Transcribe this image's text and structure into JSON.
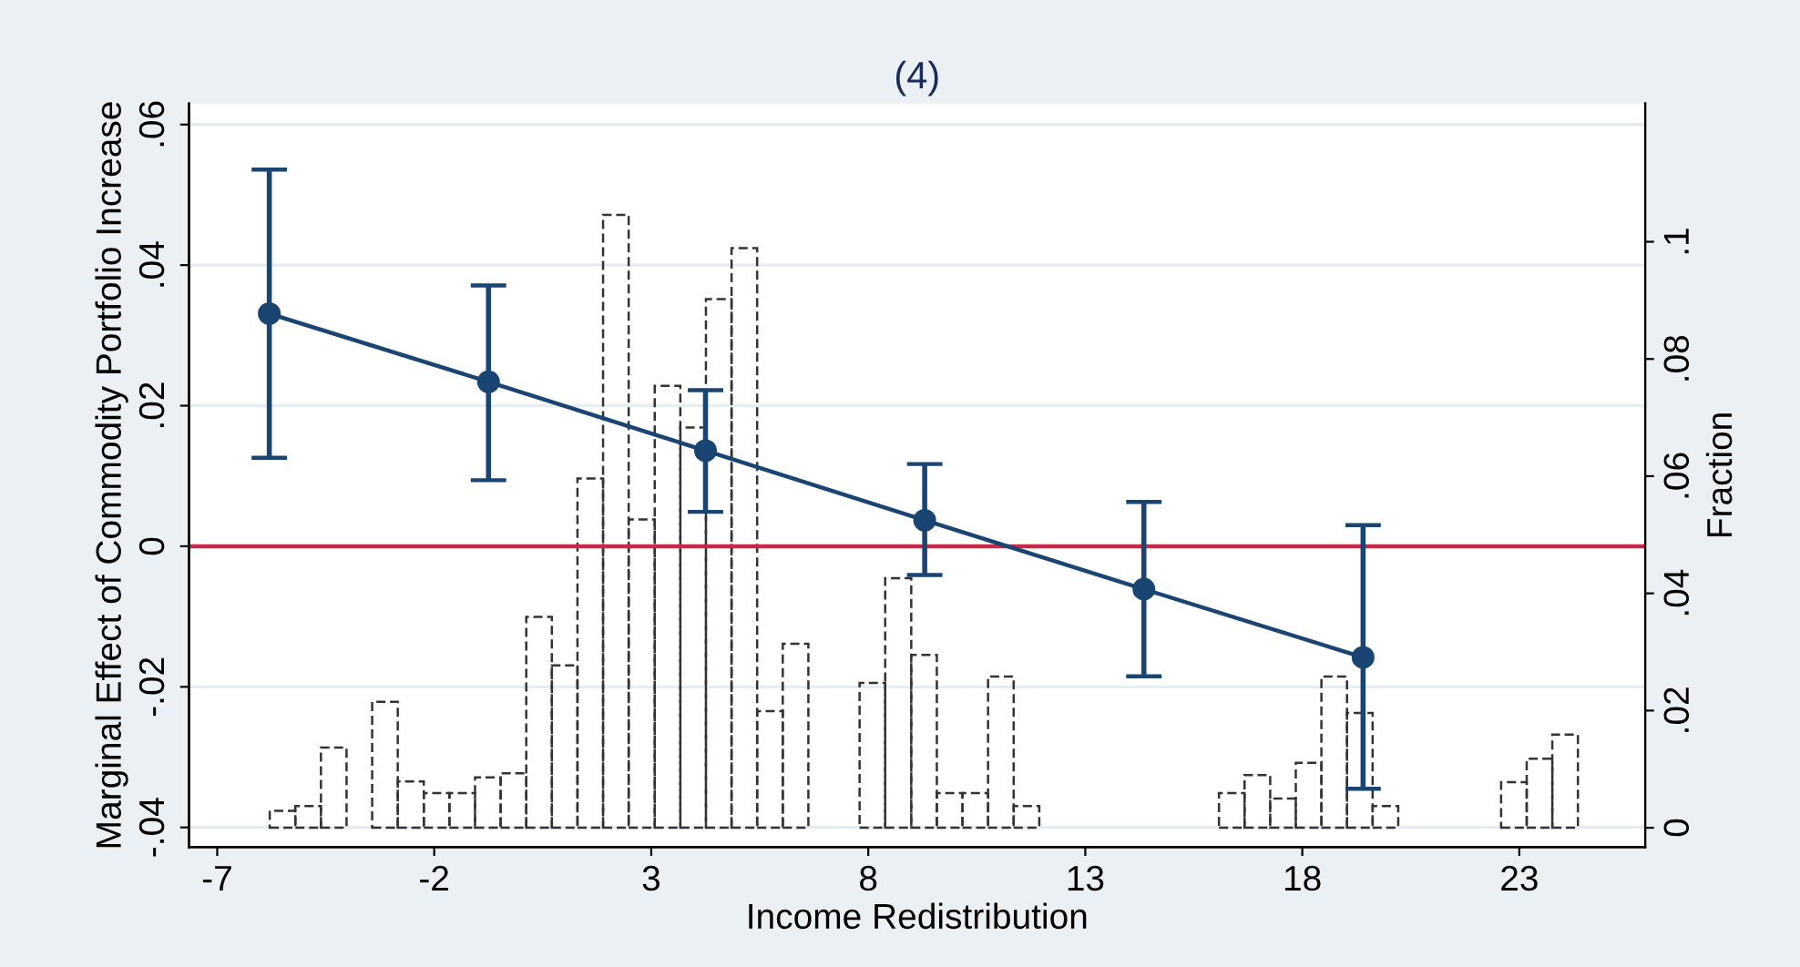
{
  "chart_data": {
    "type": "line",
    "title": "(4)",
    "xlabel": "Income Redistribution",
    "ylabel": "Marginal Effect of Commodity Portfolio Increase",
    "y2label": "Fraction",
    "xlim": [
      -7.65,
      25.9
    ],
    "xticks": [
      -7,
      -2,
      3,
      8,
      13,
      18,
      23
    ],
    "ylim": [
      -0.0428,
      0.063
    ],
    "yticks": [
      {
        "value": -0.04,
        "label": "-.04"
      },
      {
        "value": -0.02,
        "label": "-.02"
      },
      0,
      {
        "value": 0.02,
        "label": ".02"
      },
      {
        "value": 0.04,
        "label": ".04"
      },
      {
        "value": 0.06,
        "label": ".06"
      }
    ],
    "y2lim": [
      -0.0033,
      0.1236
    ],
    "y2ticks": [
      0,
      {
        "value": 0.02,
        "label": ".02"
      },
      {
        "value": 0.04,
        "label": ".04"
      },
      {
        "value": 0.06,
        "label": ".06"
      },
      {
        "value": 0.08,
        "label": ".08"
      },
      {
        "value": 0.1,
        "label": ".1"
      }
    ],
    "grid": "y",
    "legend": false,
    "marker": "circle",
    "ref_lines": [
      {
        "axis": "y",
        "value": 0,
        "color": "#c8284a"
      }
    ],
    "series": [
      {
        "type": "histogram",
        "axis": "y2",
        "color": "#333333",
        "line_style": "dashed",
        "bins": [
          -5.79,
          -5.2,
          -4.61,
          -4.02,
          -3.43,
          -2.84,
          -2.24,
          -1.65,
          -1.06,
          -0.47,
          0.12,
          0.71,
          1.3,
          1.89,
          2.48,
          3.08,
          3.67,
          4.26,
          4.85,
          5.44,
          6.03,
          6.62,
          7.21,
          7.8,
          8.39,
          8.99,
          9.58,
          10.17,
          10.76,
          11.35,
          11.94,
          12.53,
          13.12,
          13.71,
          14.3,
          14.9,
          15.49,
          16.08,
          16.67,
          17.26,
          17.85,
          18.44,
          19.03,
          19.62,
          20.21,
          20.81,
          21.4,
          21.99,
          22.58,
          23.17,
          23.76,
          24.35
        ],
        "values": [
          0.0029,
          0.0037,
          0.0137,
          0,
          0.0215,
          0.0079,
          0.0059,
          0.0059,
          0.0086,
          0.0093,
          0.036,
          0.0277,
          0.0596,
          0.1046,
          0.0526,
          0.0754,
          0.0683,
          0.0902,
          0.0989,
          0.0199,
          0.0314,
          0,
          0,
          0.0247,
          0.0426,
          0.0295,
          0.0059,
          0.0059,
          0.0258,
          0.0037,
          0,
          0,
          0,
          0,
          0,
          0,
          0,
          0.0059,
          0.009,
          0.005,
          0.0111,
          0.0258,
          0.0196,
          0.0037,
          0,
          0,
          0,
          0,
          0.0078,
          0.0118,
          0.0159
        ]
      },
      {
        "type": "line",
        "color": "#1a4572",
        "line_style": "solid",
        "x": [
          -5.8,
          -0.75,
          4.25,
          9.3,
          14.35,
          19.4
        ],
        "values": [
          0.0331,
          0.0234,
          0.0136,
          0.0037,
          -0.0061,
          -0.0158
        ],
        "errors": [
          [
            0.0126,
            0.0536
          ],
          [
            0.0094,
            0.0371
          ],
          [
            0.0049,
            0.0222
          ],
          [
            -0.0041,
            0.0117
          ],
          [
            -0.0185,
            0.0063
          ],
          [
            -0.0345,
            0.003
          ]
        ]
      }
    ]
  }
}
